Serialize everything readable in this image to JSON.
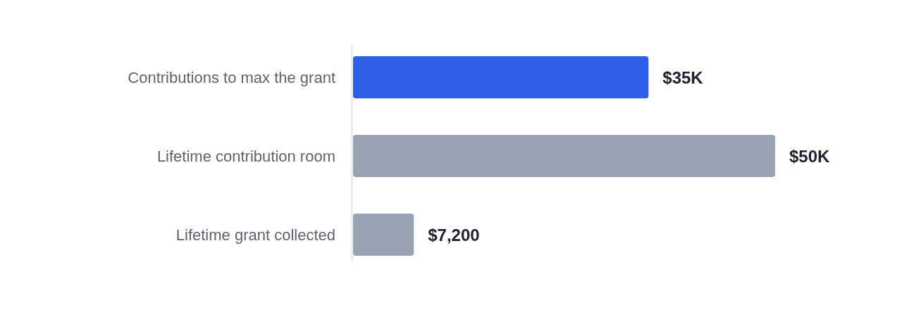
{
  "chart_data": {
    "type": "bar",
    "orientation": "horizontal",
    "categories": [
      "Contributions to max the grant",
      "Lifetime contribution room",
      "Lifetime grant collected"
    ],
    "values": [
      35000,
      50000,
      7200
    ],
    "colors": [
      "#2f5ee8",
      "#9aa3b3",
      "#9aa3b3"
    ],
    "value_labels": [
      "$35K",
      "$50K",
      "$7,200"
    ]
  }
}
